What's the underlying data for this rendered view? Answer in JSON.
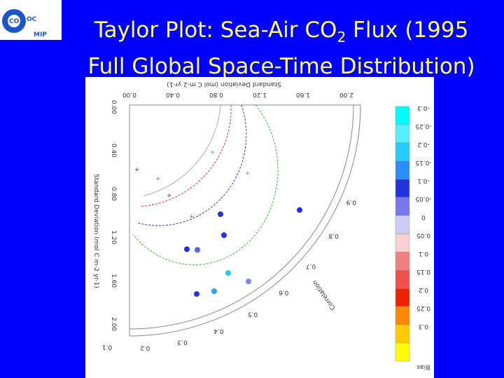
{
  "logo": {
    "main": "OC",
    "sub": "MIP",
    "gas": "CO",
    "gas_sub": "2"
  },
  "title": {
    "line1_a": "Taylor Plot: Sea-Air CO",
    "line1_sub": "2",
    "line1_b": " Flux (1995",
    "line2": "Full Global Space-Time Distribution)"
  },
  "plot": {
    "std_axis_label": "Standard Deviation (mol C m-2 yr-1)",
    "std_ticks": [
      "0.00",
      "0.40",
      "0.80",
      "1.20",
      "1.60",
      "2.00"
    ],
    "corr_label": "Correlation",
    "corr_ticks": [
      "0.9",
      "0.8",
      "0.7",
      "0.6",
      "0.5",
      "0.4",
      "0.3",
      "0.2",
      "0.1"
    ],
    "colorbar": {
      "labels": [
        "-0.3",
        "-0.25",
        "-0.2",
        "-0.15",
        "-0.1",
        "-0.05",
        "0",
        "0.05",
        "0.1",
        "0.15",
        "0.2",
        "0.25",
        "0.3"
      ],
      "title": "Bias"
    }
  }
}
